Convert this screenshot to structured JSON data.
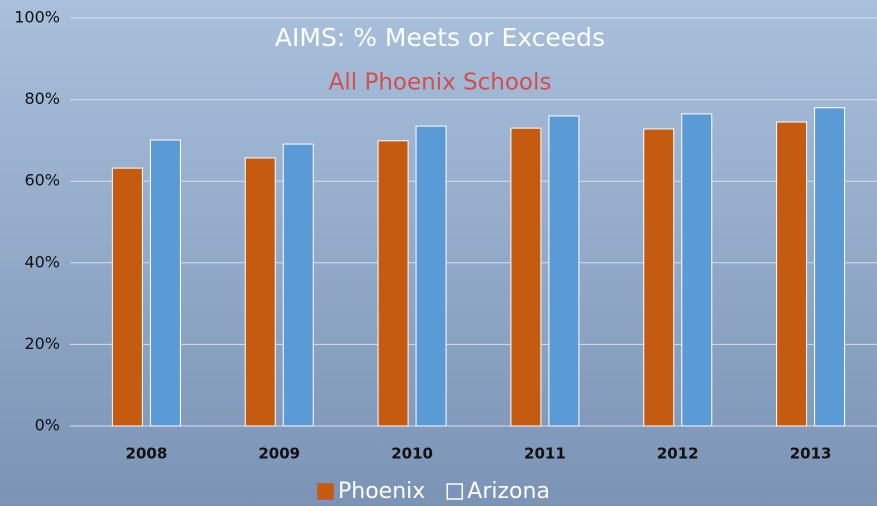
{
  "chart_data": {
    "type": "bar",
    "title": "AIMS: % Meets or Exceeds",
    "subtitle": "All Phoenix Schools",
    "categories": [
      "2008",
      "2009",
      "2010",
      "2011",
      "2012",
      "2013"
    ],
    "series": [
      {
        "name": "Phoenix",
        "color": "#c55a11",
        "values": [
          63.2,
          65.7,
          69.9,
          73.0,
          72.8,
          74.5
        ]
      },
      {
        "name": "Arizona",
        "color": "#5b9bd5",
        "values": [
          70.1,
          69.1,
          73.5,
          76.0,
          76.5,
          78.0
        ]
      }
    ],
    "ylim": [
      0,
      100
    ],
    "yticks": [
      {
        "value": 0,
        "label": "0%"
      },
      {
        "value": 20,
        "label": "20%"
      },
      {
        "value": 40,
        "label": "40%"
      },
      {
        "value": 60,
        "label": "60%"
      },
      {
        "value": 80,
        "label": "80%"
      },
      {
        "value": 100,
        "label": "100%"
      }
    ],
    "grid": true,
    "legend": "bottom"
  }
}
